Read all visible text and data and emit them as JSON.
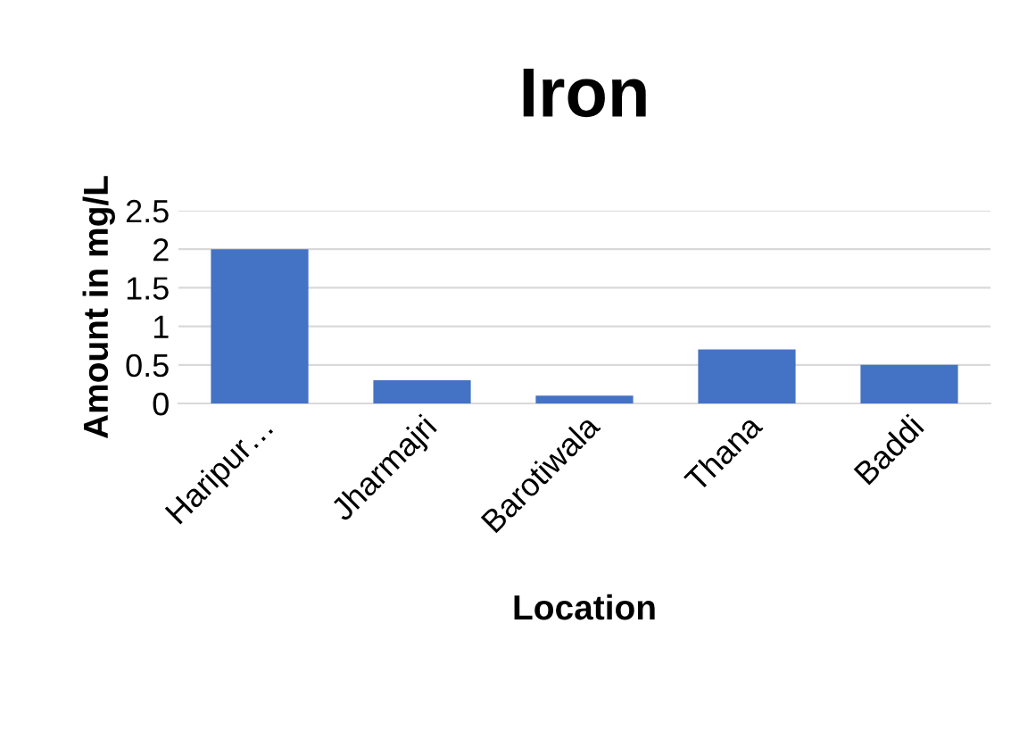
{
  "chart_data": {
    "type": "bar",
    "title": "Iron",
    "xlabel": "Location",
    "ylabel": "Amount in mg/L",
    "categories": [
      "Haripur…",
      "Jharmajri",
      "Barotiwala",
      "Thana",
      "Baddi"
    ],
    "values": [
      2,
      0.3,
      0.1,
      0.7,
      0.5
    ],
    "color": "#4472c4",
    "ylim": [
      0,
      2.5
    ],
    "yticks": [
      0,
      0.5,
      1,
      1.5,
      2,
      2.5
    ],
    "grid": "y",
    "legend": false
  }
}
